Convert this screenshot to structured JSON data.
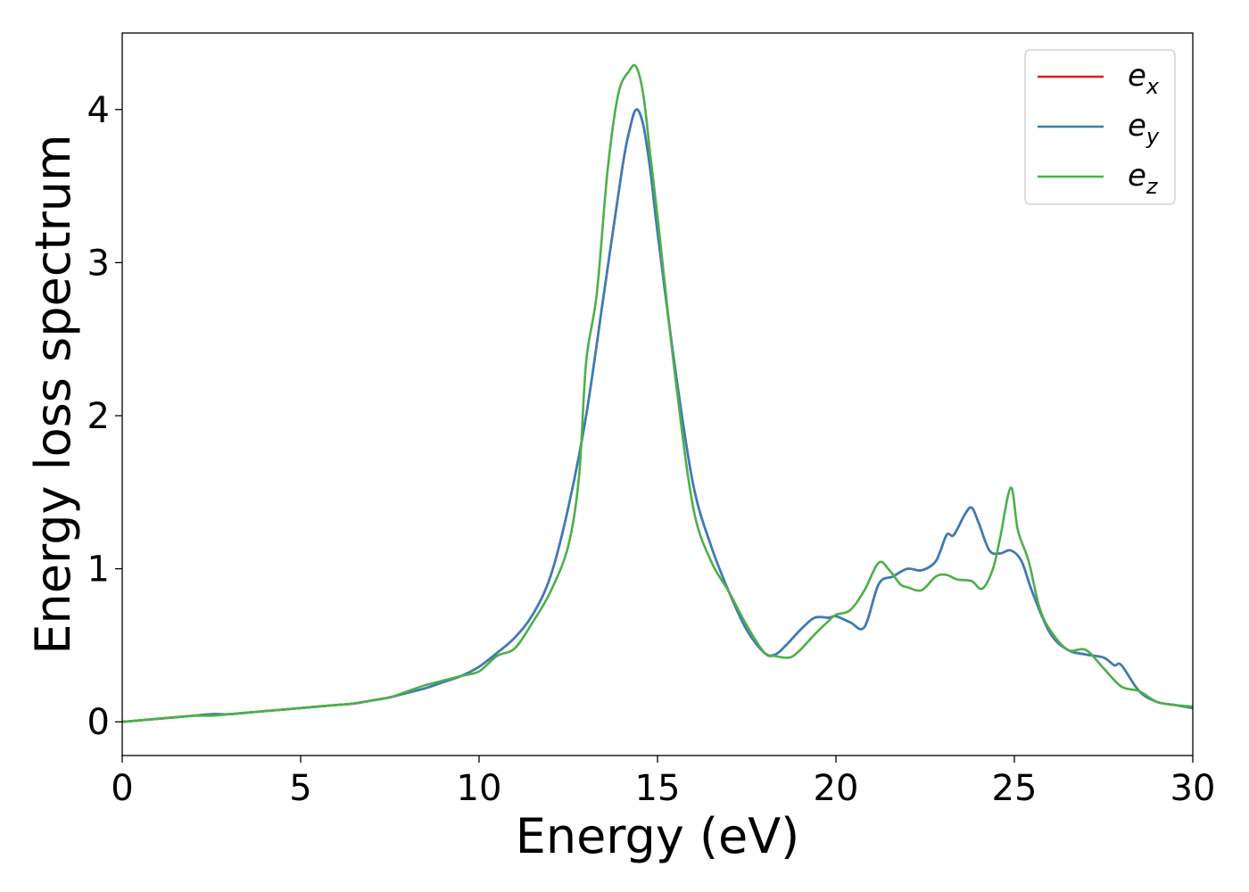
{
  "chart_data": {
    "type": "line",
    "title": "",
    "xlabel": "Energy (eV)",
    "ylabel": "Energy loss spectrum",
    "xlim": [
      0,
      30
    ],
    "ylim": [
      -0.22,
      4.5
    ],
    "xticks": [
      0,
      5,
      10,
      15,
      20,
      25,
      30
    ],
    "yticks": [
      0,
      1,
      2,
      3,
      4
    ],
    "grid": false,
    "legend_position": "top-right",
    "series": [
      {
        "name": "e",
        "subscript": "x",
        "color": "#e41a1c",
        "x": [
          0,
          0.5,
          1,
          1.5,
          2,
          2.5,
          3,
          3.5,
          4,
          4.5,
          5,
          5.5,
          6,
          6.5,
          7,
          7.5,
          8,
          8.5,
          9,
          9.5,
          10,
          10.5,
          11,
          11.5,
          12,
          12.5,
          13,
          13.5,
          14,
          14.2,
          14.4,
          14.6,
          14.8,
          15,
          15.5,
          16,
          16.5,
          17,
          17.5,
          18,
          18.3,
          18.6,
          19,
          19.4,
          19.8,
          20,
          20.4,
          20.8,
          21.2,
          21.6,
          22,
          22.4,
          22.8,
          23.1,
          23.3,
          23.6,
          23.8,
          24,
          24.3,
          24.6,
          24.9,
          25.2,
          25.5,
          26,
          26.5,
          27,
          27.5,
          27.8,
          28,
          28.5,
          29,
          29.5,
          30
        ],
        "y": [
          0,
          0.01,
          0.02,
          0.03,
          0.04,
          0.05,
          0.05,
          0.06,
          0.07,
          0.08,
          0.09,
          0.1,
          0.11,
          0.12,
          0.14,
          0.16,
          0.19,
          0.22,
          0.26,
          0.3,
          0.36,
          0.45,
          0.55,
          0.7,
          0.95,
          1.4,
          2.0,
          2.8,
          3.6,
          3.85,
          4.0,
          3.9,
          3.6,
          3.2,
          2.3,
          1.55,
          1.15,
          0.85,
          0.6,
          0.45,
          0.44,
          0.5,
          0.6,
          0.68,
          0.68,
          0.69,
          0.65,
          0.62,
          0.9,
          0.95,
          1.0,
          0.99,
          1.05,
          1.22,
          1.22,
          1.35,
          1.4,
          1.3,
          1.12,
          1.1,
          1.12,
          1.05,
          0.85,
          0.58,
          0.47,
          0.44,
          0.42,
          0.37,
          0.37,
          0.2,
          0.13,
          0.11,
          0.09
        ]
      },
      {
        "name": "e",
        "subscript": "y",
        "color": "#377eb8",
        "x": [
          0,
          0.5,
          1,
          1.5,
          2,
          2.5,
          3,
          3.5,
          4,
          4.5,
          5,
          5.5,
          6,
          6.5,
          7,
          7.5,
          8,
          8.5,
          9,
          9.5,
          10,
          10.5,
          11,
          11.5,
          12,
          12.5,
          13,
          13.5,
          14,
          14.2,
          14.4,
          14.6,
          14.8,
          15,
          15.5,
          16,
          16.5,
          17,
          17.5,
          18,
          18.3,
          18.6,
          19,
          19.4,
          19.8,
          20,
          20.4,
          20.8,
          21.2,
          21.6,
          22,
          22.4,
          22.8,
          23.1,
          23.3,
          23.6,
          23.8,
          24,
          24.3,
          24.6,
          24.9,
          25.2,
          25.5,
          26,
          26.5,
          27,
          27.5,
          27.8,
          28,
          28.5,
          29,
          29.5,
          30
        ],
        "y": [
          0,
          0.01,
          0.02,
          0.03,
          0.04,
          0.05,
          0.05,
          0.06,
          0.07,
          0.08,
          0.09,
          0.1,
          0.11,
          0.12,
          0.14,
          0.16,
          0.19,
          0.22,
          0.26,
          0.3,
          0.36,
          0.45,
          0.55,
          0.7,
          0.95,
          1.4,
          2.0,
          2.8,
          3.6,
          3.85,
          4.0,
          3.9,
          3.6,
          3.2,
          2.3,
          1.55,
          1.15,
          0.85,
          0.6,
          0.45,
          0.44,
          0.5,
          0.6,
          0.68,
          0.68,
          0.69,
          0.65,
          0.62,
          0.9,
          0.95,
          1.0,
          0.99,
          1.05,
          1.22,
          1.22,
          1.35,
          1.4,
          1.3,
          1.12,
          1.1,
          1.12,
          1.05,
          0.85,
          0.58,
          0.47,
          0.44,
          0.42,
          0.37,
          0.37,
          0.2,
          0.13,
          0.11,
          0.09
        ]
      },
      {
        "name": "e",
        "subscript": "z",
        "color": "#4daf4a",
        "x": [
          0,
          0.5,
          1,
          1.5,
          2,
          2.5,
          3,
          3.5,
          4,
          4.5,
          5,
          5.5,
          6,
          6.5,
          7,
          7.5,
          8,
          8.5,
          9,
          9.5,
          10,
          10.5,
          11,
          11.5,
          12,
          12.5,
          12.8,
          13,
          13.3,
          13.6,
          13.9,
          14.2,
          14.4,
          14.6,
          14.8,
          15,
          15.5,
          16,
          16.5,
          17,
          17.5,
          18,
          18.3,
          18.7,
          19,
          19.4,
          19.8,
          20,
          20.4,
          20.8,
          21.2,
          21.5,
          21.8,
          22,
          22.4,
          22.8,
          23.1,
          23.4,
          23.8,
          24.1,
          24.4,
          24.6,
          24.9,
          25.1,
          25.4,
          25.7,
          26,
          26.5,
          27,
          27.5,
          28,
          28.5,
          29,
          29.5,
          30
        ],
        "y": [
          0,
          0.01,
          0.02,
          0.03,
          0.04,
          0.04,
          0.05,
          0.06,
          0.07,
          0.08,
          0.09,
          0.1,
          0.11,
          0.12,
          0.14,
          0.16,
          0.2,
          0.24,
          0.27,
          0.3,
          0.33,
          0.43,
          0.48,
          0.65,
          0.85,
          1.15,
          1.6,
          2.35,
          2.8,
          3.6,
          4.1,
          4.25,
          4.28,
          4.1,
          3.7,
          3.3,
          2.25,
          1.4,
          1.05,
          0.85,
          0.63,
          0.45,
          0.43,
          0.42,
          0.47,
          0.57,
          0.66,
          0.7,
          0.73,
          0.86,
          1.04,
          0.99,
          0.9,
          0.88,
          0.86,
          0.95,
          0.96,
          0.93,
          0.92,
          0.87,
          1.0,
          1.2,
          1.53,
          1.25,
          1.05,
          0.75,
          0.6,
          0.47,
          0.47,
          0.35,
          0.23,
          0.2,
          0.13,
          0.11,
          0.1
        ]
      }
    ]
  }
}
